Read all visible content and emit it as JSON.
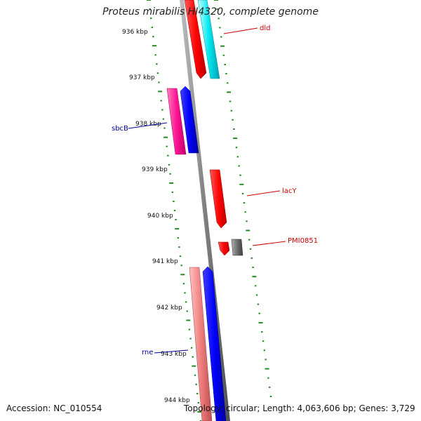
{
  "title": "Proteus mirabilis HI4320, complete genome",
  "footer": {
    "accession": "Accession: NC_010554",
    "summary": "Topology: circular; Length: 4,063,606 bp; Genes: 3,729"
  },
  "ticks": [
    "936 kbp",
    "937 kbp",
    "938 kbp",
    "939 kbp",
    "940 kbp",
    "941 kbp",
    "942 kbp",
    "943 kbp",
    "944 kbp"
  ],
  "gene_labels": [
    {
      "text": "dld",
      "color": "#cc0000"
    },
    {
      "text": "sbcB",
      "color": "#000099"
    },
    {
      "text": "lacY",
      "color": "#cc0000"
    },
    {
      "text": "PMI0851",
      "color": "#cc0000"
    },
    {
      "text": "rne",
      "color": "#000099"
    }
  ],
  "colors": {
    "backbone": "#808080",
    "gc_dots": "#228b22",
    "red_feature": "#ff0000",
    "cyan_feature": "#00e5ee",
    "blue_feature": "#0000ff",
    "magenta_feature": "#ff1493",
    "pink_feature": "#f08080",
    "gray_feature": "#707070"
  }
}
